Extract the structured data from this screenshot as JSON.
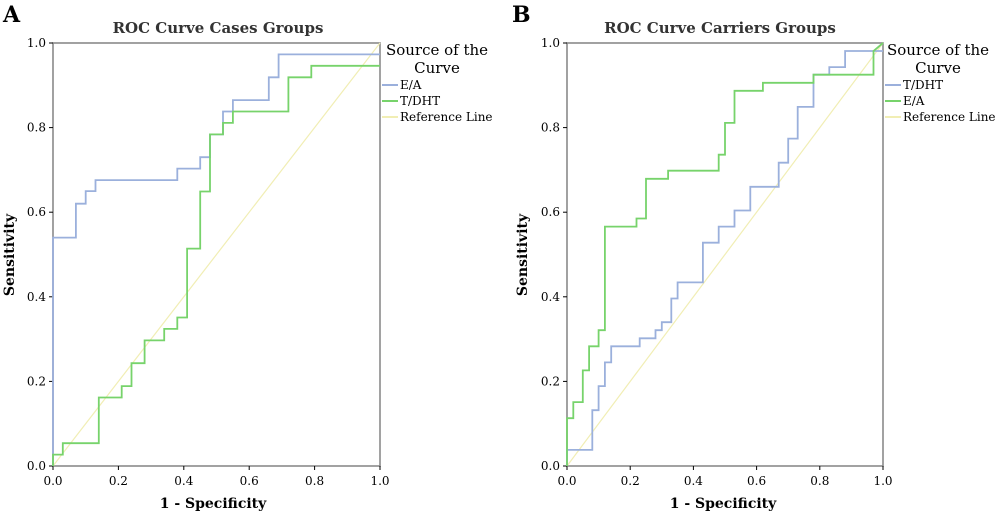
{
  "panels": [
    {
      "letter": "A",
      "legend_title": [
        "Source of the",
        "Curve"
      ]
    },
    {
      "letter": "B",
      "legend_title": [
        "Source of the",
        "Curve"
      ]
    }
  ],
  "chart_data": [
    {
      "type": "line",
      "title": "ROC Curve Cases Groups",
      "xlabel": "1 - Specificity",
      "ylabel": "Sensitivity",
      "xlim": [
        0,
        1
      ],
      "ylim": [
        0,
        1
      ],
      "x_ticks": [
        "0.0",
        "0.2",
        "0.4",
        "0.6",
        "0.8",
        "1.0"
      ],
      "y_ticks": [
        "0.0",
        "0.2",
        "0.4",
        "0.6",
        "0.8",
        "1.0"
      ],
      "grid": false,
      "legend_position": "right",
      "series": [
        {
          "name": "E/A",
          "color": "#9bb0dc",
          "x": [
            0,
            0,
            0.07,
            0.07,
            0.1,
            0.1,
            0.13,
            0.13,
            0.38,
            0.38,
            0.45,
            0.45,
            0.48,
            0.48,
            0.52,
            0.52,
            0.55,
            0.55,
            0.66,
            0.66,
            0.69,
            0.69,
            1.0
          ],
          "y": [
            0,
            0.54,
            0.54,
            0.62,
            0.62,
            0.65,
            0.65,
            0.676,
            0.676,
            0.703,
            0.703,
            0.73,
            0.73,
            0.784,
            0.784,
            0.838,
            0.838,
            0.865,
            0.865,
            0.919,
            0.919,
            0.973,
            0.973
          ]
        },
        {
          "name": "T/DHT",
          "color": "#77d36b",
          "x": [
            0,
            0,
            0.03,
            0.03,
            0.14,
            0.14,
            0.21,
            0.21,
            0.24,
            0.24,
            0.28,
            0.28,
            0.34,
            0.34,
            0.38,
            0.38,
            0.41,
            0.41,
            0.45,
            0.45,
            0.48,
            0.48,
            0.52,
            0.52,
            0.55,
            0.55,
            0.72,
            0.72,
            0.79,
            0.79,
            1.0
          ],
          "y": [
            0,
            0.027,
            0.027,
            0.054,
            0.054,
            0.162,
            0.162,
            0.189,
            0.189,
            0.243,
            0.243,
            0.297,
            0.297,
            0.324,
            0.324,
            0.351,
            0.351,
            0.514,
            0.514,
            0.649,
            0.649,
            0.784,
            0.784,
            0.811,
            0.811,
            0.838,
            0.838,
            0.919,
            0.919,
            0.946,
            0.946
          ]
        },
        {
          "name": "Reference Line",
          "color": "#f1eeb4",
          "x": [
            0,
            1
          ],
          "y": [
            0,
            1
          ]
        }
      ]
    },
    {
      "type": "line",
      "title": "ROC Curve Carriers Groups",
      "xlabel": "1 - Specificity",
      "ylabel": "Sensitivity",
      "xlim": [
        0,
        1
      ],
      "ylim": [
        0,
        1
      ],
      "x_ticks": [
        "0.0",
        "0.2",
        "0.4",
        "0.6",
        "0.8",
        "1.0"
      ],
      "y_ticks": [
        "0.0",
        "0.2",
        "0.4",
        "0.6",
        "0.8",
        "1.0"
      ],
      "grid": false,
      "legend_position": "right",
      "series": [
        {
          "name": "T/DHT",
          "color": "#9bb0dc",
          "x": [
            0,
            0,
            0.08,
            0.08,
            0.1,
            0.1,
            0.12,
            0.12,
            0.14,
            0.14,
            0.23,
            0.23,
            0.28,
            0.28,
            0.3,
            0.3,
            0.33,
            0.33,
            0.35,
            0.35,
            0.43,
            0.43,
            0.48,
            0.48,
            0.53,
            0.53,
            0.58,
            0.58,
            0.67,
            0.67,
            0.7,
            0.7,
            0.73,
            0.73,
            0.78,
            0.78,
            0.83,
            0.83,
            0.88,
            0.88,
            1.0
          ],
          "y": [
            0,
            0.038,
            0.038,
            0.132,
            0.132,
            0.189,
            0.189,
            0.245,
            0.245,
            0.283,
            0.283,
            0.302,
            0.302,
            0.321,
            0.321,
            0.34,
            0.34,
            0.396,
            0.396,
            0.434,
            0.434,
            0.528,
            0.528,
            0.566,
            0.566,
            0.604,
            0.604,
            0.66,
            0.66,
            0.717,
            0.717,
            0.774,
            0.774,
            0.849,
            0.849,
            0.925,
            0.925,
            0.943,
            0.943,
            0.981,
            0.981
          ]
        },
        {
          "name": "E/A",
          "color": "#77d36b",
          "x": [
            0,
            0,
            0.02,
            0.02,
            0.05,
            0.05,
            0.07,
            0.07,
            0.1,
            0.1,
            0.12,
            0.12,
            0.22,
            0.22,
            0.25,
            0.25,
            0.32,
            0.32,
            0.48,
            0.48,
            0.5,
            0.5,
            0.53,
            0.53,
            0.62,
            0.62,
            0.78,
            0.78,
            0.97,
            0.97,
            1.0
          ],
          "y": [
            0,
            0.113,
            0.113,
            0.151,
            0.151,
            0.226,
            0.226,
            0.283,
            0.283,
            0.321,
            0.321,
            0.566,
            0.566,
            0.585,
            0.585,
            0.679,
            0.679,
            0.698,
            0.698,
            0.736,
            0.736,
            0.811,
            0.811,
            0.887,
            0.887,
            0.906,
            0.906,
            0.925,
            0.925,
            0.981,
            1.0
          ]
        },
        {
          "name": "Reference Line",
          "color": "#f1eeb4",
          "x": [
            0,
            1
          ],
          "y": [
            0,
            1
          ]
        }
      ]
    }
  ]
}
